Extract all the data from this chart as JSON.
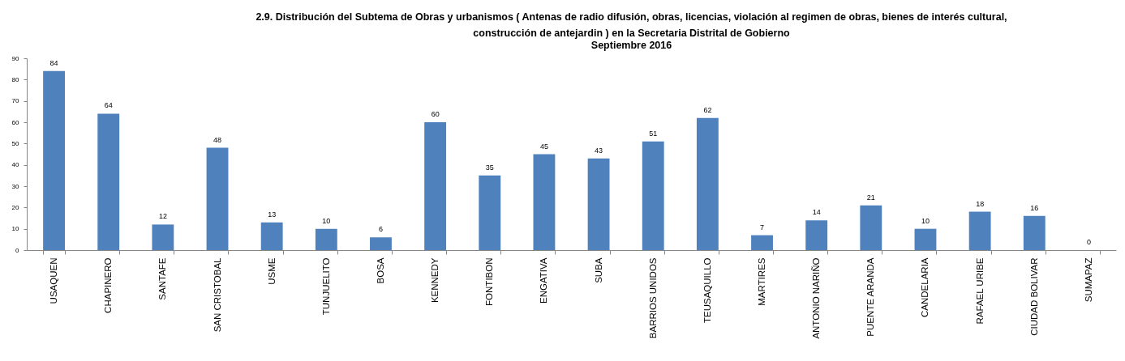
{
  "chart_data": {
    "type": "bar",
    "title": "2.9.   Distribución del Subtema de Obras y urbanismos  ( Antenas de radio difusión, obras, licencias, violación al regimen de  obras, bienes de interés cultural,\nconstrucción de antejardin ) en la Secretaria Distrital de Gobierno",
    "subtitle": "Septiembre 2016",
    "categories": [
      "USAQUEN",
      "CHAPINERO",
      "SANTAFE",
      "SAN CRISTOBAL",
      "USME",
      "TUNJUELITO",
      "BOSA",
      "KENNEDY",
      "FONTIBON",
      "ENGATIVA",
      "SUBA",
      "BARRIOS UNIDOS",
      "TEUSAQUILLO",
      "MARTIRES",
      "ANTONIO NARIÑO",
      "PUENTE ARANDA",
      "CANDELARIA",
      "RAFAEL URIBE",
      "CIUDAD BOLIVAR",
      "SUMAPAZ"
    ],
    "values": [
      84,
      64,
      12,
      48,
      13,
      10,
      6,
      60,
      35,
      45,
      43,
      51,
      62,
      7,
      14,
      21,
      10,
      18,
      16,
      0
    ],
    "color": "#4f81bd",
    "ylim": [
      0,
      90
    ],
    "yticks": [
      0,
      10,
      20,
      30,
      40,
      50,
      60,
      70,
      80,
      90
    ],
    "data_labels": true
  }
}
